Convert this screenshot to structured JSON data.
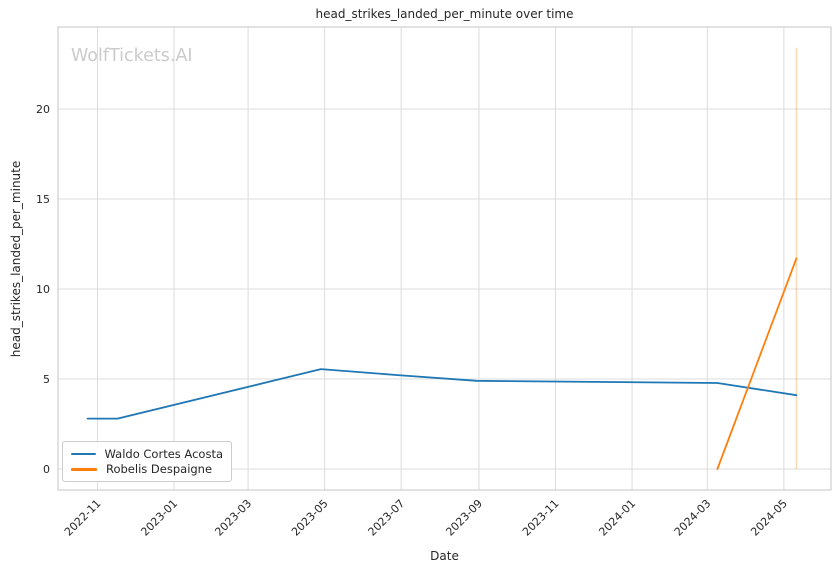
{
  "watermark": "WolfTickets.AI",
  "chart_data": {
    "type": "line",
    "title": "head_strikes_landed_per_minute over time",
    "xlabel": "Date",
    "ylabel": "head_strikes_landed_per_minute",
    "grid": true,
    "legend_position": "lower left",
    "x_tick_labels": [
      "2022-11",
      "2023-01",
      "2023-03",
      "2023-05",
      "2023-07",
      "2023-09",
      "2023-11",
      "2024-01",
      "2024-03",
      "2024-05"
    ],
    "x_tick_rotation_deg": 45,
    "y_ticks": [
      0,
      5,
      10,
      15,
      20
    ],
    "ylim": [
      -1.2,
      24.6
    ],
    "xlim": [
      "2022-09-30",
      "2024-06-08"
    ],
    "grid_color": "#dcdcdc",
    "frame_color": "#cfcfcf",
    "series": [
      {
        "name": "Waldo Cortes Acosta",
        "color": "#1f77b4",
        "points": [
          [
            "2022-10-24",
            2.8
          ],
          [
            "2022-11-17",
            2.8
          ],
          [
            "2023-04-28",
            5.55
          ],
          [
            "2023-07-01",
            5.2
          ],
          [
            "2023-08-30",
            4.9
          ],
          [
            "2024-03-09",
            4.78
          ],
          [
            "2024-05-11",
            4.1
          ]
        ]
      },
      {
        "name": "Robelis Despaigne",
        "color": "#ff7f0e",
        "points": [
          [
            "2024-03-09",
            0.0
          ],
          [
            "2024-05-11",
            11.7
          ]
        ],
        "error_band": {
          "date": "2024-05-11",
          "low": 0.0,
          "high": 23.4
        }
      }
    ]
  }
}
